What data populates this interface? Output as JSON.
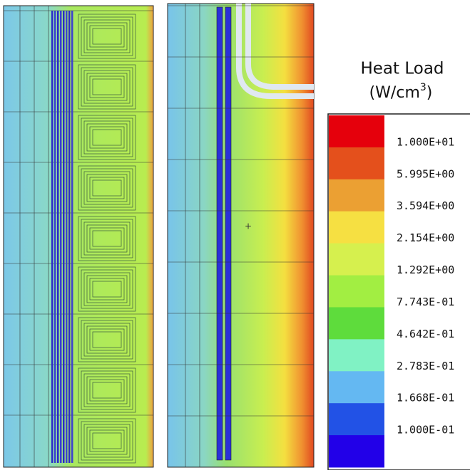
{
  "legend": {
    "title": "Heat Load",
    "unit": "(W/cm",
    "unit_sup": "3",
    "unit_close": ")",
    "levels": [
      "1.000E+01",
      "5.995E+00",
      "3.594E+00",
      "2.154E+00",
      "1.292E+00",
      "7.743E-01",
      "4.642E-01",
      "2.783E-01",
      "1.668E-01",
      "1.000E-01"
    ],
    "colors": [
      "#e5000c",
      "#e4501c",
      "#eba033",
      "#f6e042",
      "#d6f04e",
      "#a2ee42",
      "#5edc3c",
      "#80f2c4",
      "#64b8f2",
      "#2252e6",
      "#2200e8"
    ]
  }
}
